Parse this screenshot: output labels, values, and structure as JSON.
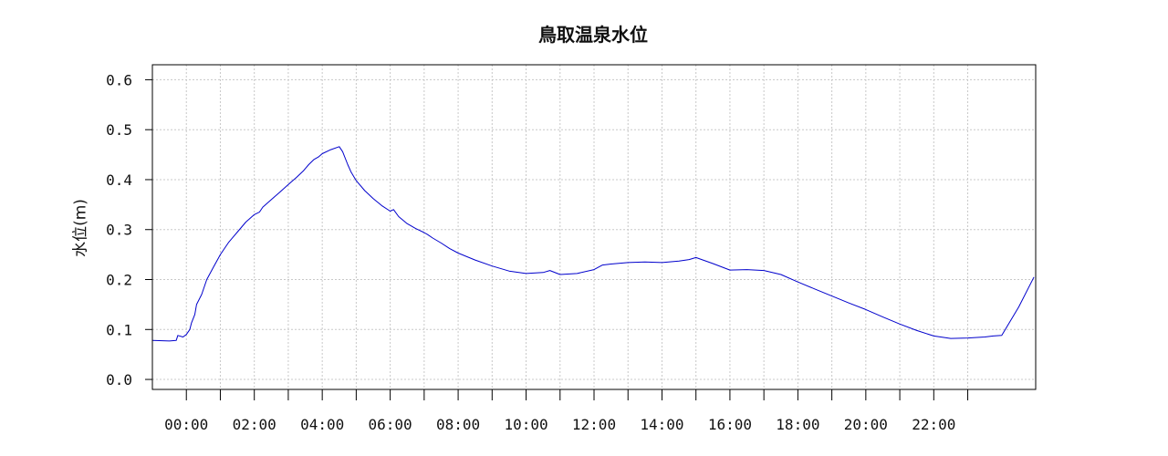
{
  "chart_data": {
    "type": "line",
    "title": "鳥取温泉水位",
    "xlabel": "",
    "ylabel": "水位(m)",
    "ylim": [
      -0.02,
      0.63
    ],
    "xlim": [
      -1.0,
      25.0
    ],
    "x_unit": "hour",
    "x_major_ticks": [
      0,
      2,
      4,
      6,
      8,
      10,
      12,
      14,
      16,
      18,
      20,
      22
    ],
    "x_minor_ticks": [
      1,
      3,
      5,
      7,
      9,
      11,
      13,
      15,
      17,
      19,
      21,
      23
    ],
    "x_tick_labels": [
      "00:00",
      "02:00",
      "04:00",
      "06:00",
      "08:00",
      "10:00",
      "12:00",
      "14:00",
      "16:00",
      "18:00",
      "20:00",
      "22:00"
    ],
    "y_ticks": [
      0.0,
      0.1,
      0.2,
      0.3,
      0.4,
      0.5,
      0.6
    ],
    "y_tick_labels": [
      "0.0",
      "0.1",
      "0.2",
      "0.3",
      "0.4",
      "0.5",
      "0.6"
    ],
    "grid": true,
    "legend": "none",
    "series": [
      {
        "color": "#0000cc",
        "x": [
          -1.0,
          -0.5,
          -0.3,
          -0.25,
          -0.1,
          0.0,
          0.1,
          0.15,
          0.25,
          0.3,
          0.45,
          0.6,
          0.8,
          1.0,
          1.1,
          1.25,
          1.5,
          1.75,
          2.0,
          2.15,
          2.25,
          2.5,
          2.75,
          3.0,
          3.25,
          3.45,
          3.5,
          3.6,
          3.75,
          3.9,
          4.0,
          4.25,
          4.5,
          4.6,
          4.75,
          4.85,
          5.0,
          5.25,
          5.5,
          5.75,
          6.0,
          6.1,
          6.25,
          6.5,
          6.75,
          7.0,
          7.1,
          7.25,
          7.5,
          7.75,
          8.0,
          8.5,
          9.0,
          9.5,
          10.0,
          10.5,
          10.7,
          11.0,
          11.5,
          12.0,
          12.25,
          12.5,
          13.0,
          13.5,
          14.0,
          14.5,
          14.8,
          15.0,
          15.5,
          16.0,
          16.5,
          17.0,
          17.5,
          18.0,
          18.5,
          19.0,
          19.5,
          20.0,
          20.5,
          21.0,
          21.5,
          22.0,
          22.5,
          23.0,
          23.5,
          23.75,
          24.0,
          24.5,
          24.95
        ],
        "values": [
          0.078,
          0.077,
          0.078,
          0.088,
          0.085,
          0.09,
          0.1,
          0.113,
          0.13,
          0.15,
          0.17,
          0.2,
          0.225,
          0.25,
          0.26,
          0.275,
          0.295,
          0.315,
          0.33,
          0.335,
          0.345,
          0.36,
          0.375,
          0.39,
          0.405,
          0.418,
          0.422,
          0.43,
          0.44,
          0.446,
          0.452,
          0.46,
          0.466,
          0.456,
          0.43,
          0.415,
          0.398,
          0.378,
          0.362,
          0.348,
          0.337,
          0.34,
          0.326,
          0.312,
          0.302,
          0.294,
          0.29,
          0.283,
          0.273,
          0.262,
          0.253,
          0.239,
          0.227,
          0.217,
          0.212,
          0.214,
          0.218,
          0.21,
          0.212,
          0.22,
          0.229,
          0.231,
          0.234,
          0.235,
          0.234,
          0.237,
          0.24,
          0.244,
          0.232,
          0.219,
          0.22,
          0.218,
          0.21,
          0.195,
          0.181,
          0.167,
          0.153,
          0.14,
          0.125,
          0.111,
          0.098,
          0.087,
          0.082,
          0.083,
          0.085,
          0.087,
          0.088,
          0.145,
          0.205
        ]
      }
    ]
  }
}
